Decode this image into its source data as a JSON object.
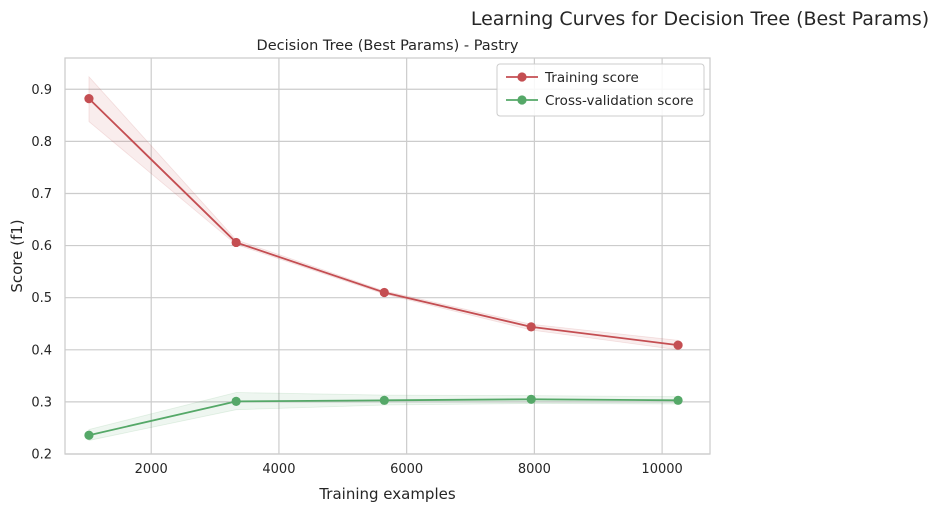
{
  "figure": {
    "suptitle": "Learning Curves for Decision Tree (Best Params)"
  },
  "chart_data": {
    "type": "line",
    "title": "Decision Tree (Best Params) - Pastry",
    "xlabel": "Training examples",
    "ylabel": "Score (f1)",
    "xlim": [
      650,
      10750
    ],
    "ylim": [
      0.2,
      0.96
    ],
    "x_ticks": [
      2000,
      4000,
      6000,
      8000,
      10000
    ],
    "y_ticks": [
      0.2,
      0.3,
      0.4,
      0.5,
      0.6,
      0.7,
      0.8,
      0.9
    ],
    "grid": true,
    "legend_position": "top-right",
    "x": [
      1025,
      3330,
      5650,
      7950,
      10250
    ],
    "series": [
      {
        "name": "Training score",
        "color": "#c44e52",
        "values": [
          0.882,
          0.606,
          0.51,
          0.444,
          0.409
        ],
        "band_lower": [
          0.838,
          0.602,
          0.507,
          0.438,
          0.4
        ],
        "band_upper": [
          0.924,
          0.611,
          0.513,
          0.449,
          0.418
        ]
      },
      {
        "name": "Cross-validation score",
        "color": "#55a868",
        "values": [
          0.236,
          0.301,
          0.303,
          0.305,
          0.303
        ],
        "band_lower": [
          0.226,
          0.285,
          0.294,
          0.297,
          0.296
        ],
        "band_upper": [
          0.247,
          0.318,
          0.313,
          0.312,
          0.31
        ]
      }
    ]
  }
}
